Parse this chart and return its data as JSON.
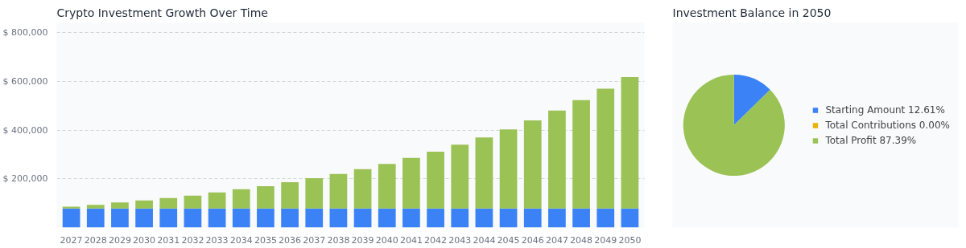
{
  "chart_data": [
    {
      "type": "bar",
      "title": "Crypto Investment Growth Over Time",
      "stacked": true,
      "categories": [
        "2027",
        "2028",
        "2029",
        "2030",
        "2031",
        "2032",
        "2033",
        "2034",
        "2035",
        "2036",
        "2037",
        "2038",
        "2039",
        "2040",
        "2041",
        "2042",
        "2043",
        "2044",
        "2045",
        "2046",
        "2047",
        "2048",
        "2049",
        "2050"
      ],
      "series": [
        {
          "color": "#3b82f6",
          "values": [
            78000,
            78000,
            78000,
            78000,
            78000,
            78000,
            78000,
            78000,
            78000,
            78000,
            78000,
            78000,
            78000,
            78000,
            78000,
            78000,
            78000,
            78000,
            78000,
            78000,
            78000,
            78000,
            78000,
            78000
          ]
        },
        {
          "color": "#9bc255",
          "values": [
            8000,
            15000,
            25000,
            33000,
            43000,
            53000,
            66000,
            79000,
            92000,
            108000,
            125000,
            142000,
            162000,
            183000,
            208000,
            233000,
            262000,
            292000,
            325000,
            362000,
            402000,
            445000,
            492000,
            540000
          ]
        }
      ],
      "ylim": [
        0,
        840000
      ],
      "yticks": [
        {
          "value": 0,
          "label": null
        },
        {
          "value": 200000,
          "label": "$ 200,000"
        },
        {
          "value": 400000,
          "label": "$ 400,000"
        },
        {
          "value": 600000,
          "label": "$ 600,000"
        },
        {
          "value": 800000,
          "label": "$ 800,000"
        }
      ],
      "grid": "y"
    },
    {
      "type": "pie",
      "title": "Investment Balance in 2050",
      "categories": [
        "Starting Amount",
        "Total Contributions",
        "Total Profit"
      ],
      "values": [
        12.61,
        0.0,
        87.39
      ],
      "colors": [
        "#3b82f6",
        "#eab308",
        "#9bc255"
      ],
      "value_labels": [
        "12.61%",
        "0.00%",
        "87.39%"
      ],
      "legend": "right"
    }
  ]
}
